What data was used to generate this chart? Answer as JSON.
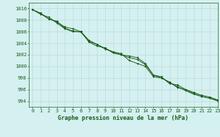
{
  "title": "Graphe pression niveau de la mer (hPa)",
  "background_color": "#d4f0f0",
  "grid_color": "#c0dada",
  "line_color": "#1a5c1a",
  "xlim": [
    -0.5,
    23
  ],
  "ylim": [
    993.0,
    1011.0
  ],
  "yticks": [
    994,
    996,
    998,
    1000,
    1002,
    1004,
    1006,
    1008,
    1010
  ],
  "xticks": [
    0,
    1,
    2,
    3,
    4,
    5,
    6,
    7,
    8,
    9,
    10,
    11,
    12,
    13,
    14,
    15,
    16,
    17,
    18,
    19,
    20,
    21,
    22,
    23
  ],
  "series": [
    [
      1009.8,
      1009.1,
      1008.2,
      1007.8,
      1006.6,
      1006.1,
      1005.9,
      1004.3,
      1003.8,
      1003.1,
      1002.5,
      1002.2,
      1001.0,
      1000.5,
      1000.0,
      998.2,
      998.0,
      997.3,
      996.3,
      996.0,
      995.3,
      994.8,
      994.5,
      994.0
    ],
    [
      1009.8,
      1009.0,
      1008.5,
      1007.5,
      1006.5,
      1006.0,
      1006.0,
      1004.5,
      1003.8,
      1003.0,
      1002.5,
      1002.0,
      1001.8,
      1001.5,
      1000.5,
      998.5,
      998.2,
      997.0,
      996.8,
      996.0,
      995.5,
      995.0,
      994.7,
      994.2
    ],
    [
      1009.8,
      1009.2,
      1008.2,
      1007.7,
      1006.8,
      1006.5,
      1006.0,
      1004.2,
      1003.5,
      1003.2,
      1002.3,
      1002.0,
      1001.5,
      1001.2,
      1000.3,
      998.5,
      998.0,
      997.2,
      996.5,
      995.8,
      995.2,
      994.8,
      994.5,
      994.1
    ]
  ],
  "tick_fontsize": 5.0,
  "label_fontsize": 6.0
}
